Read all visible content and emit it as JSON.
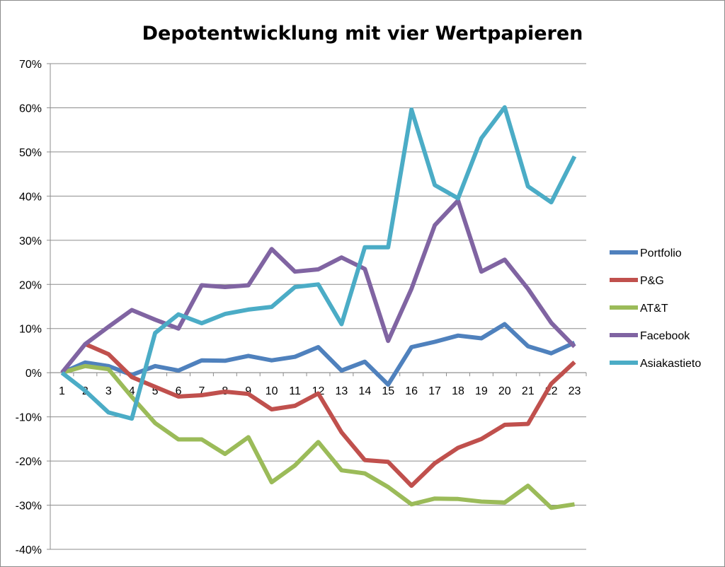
{
  "chart_data": {
    "type": "line",
    "title": "Depotentwicklung mit vier Wertpapieren",
    "xlabel": "",
    "ylabel": "",
    "ylim": [
      -40,
      70
    ],
    "y_ticks": [
      "70%",
      "60%",
      "50%",
      "40%",
      "30%",
      "20%",
      "10%",
      "0%",
      "-10%",
      "-20%",
      "-30%",
      "-40%"
    ],
    "categories": [
      "1",
      "2",
      "3",
      "4",
      "5",
      "6",
      "7",
      "8",
      "9",
      "10",
      "11",
      "12",
      "13",
      "14",
      "15",
      "16",
      "17",
      "18",
      "19",
      "20",
      "21",
      "22",
      "23"
    ],
    "grid": "horizontal",
    "legend_position": "right",
    "series": [
      {
        "name": "Portfolio",
        "color": "#4F81BD",
        "values": [
          0,
          2.3,
          1.5,
          -0.5,
          1.5,
          0.5,
          2.8,
          2.7,
          3.8,
          2.8,
          3.6,
          5.8,
          0.5,
          2.5,
          -2.7,
          5.8,
          7.0,
          8.4,
          7.8,
          11.0,
          6.0,
          4.4,
          6.8
        ]
      },
      {
        "name": "P&G",
        "color": "#C0504D",
        "values": [
          null,
          6.5,
          4.2,
          -1.0,
          -3.2,
          -5.4,
          -5.1,
          -4.3,
          -4.8,
          -8.3,
          -7.5,
          -4.7,
          -13.5,
          -19.8,
          -20.2,
          -25.6,
          -20.5,
          -17.0,
          -15.0,
          -11.8,
          -11.6,
          -2.5,
          2.4
        ]
      },
      {
        "name": "AT&T",
        "color": "#9BBB59",
        "values": [
          0,
          1.5,
          0.8,
          -5.5,
          -11.4,
          -15.1,
          -15.1,
          -18.4,
          -14.6,
          -24.8,
          -21.0,
          -15.7,
          -22.1,
          -22.8,
          -25.9,
          -29.8,
          -28.5,
          -28.6,
          -29.2,
          -29.4,
          -25.6,
          -30.6,
          -29.8
        ]
      },
      {
        "name": "Facebook",
        "color": "#8064A2",
        "values": [
          0,
          6.5,
          10.4,
          14.2,
          12.0,
          10.0,
          19.8,
          19.4,
          19.8,
          28.0,
          22.9,
          23.4,
          26.1,
          23.5,
          7.2,
          19.0,
          33.4,
          39.0,
          22.9,
          25.6,
          19.0,
          11.3,
          5.9
        ]
      },
      {
        "name": "Asiakastieto",
        "color": "#4BACC6",
        "values": [
          0,
          -4.1,
          -9.0,
          -10.4,
          9.0,
          13.2,
          11.2,
          13.3,
          14.3,
          14.9,
          19.4,
          20.0,
          11.0,
          28.4,
          28.4,
          59.6,
          42.5,
          39.5,
          53.1,
          60.1,
          42.2,
          38.6,
          49.0
        ]
      }
    ]
  }
}
